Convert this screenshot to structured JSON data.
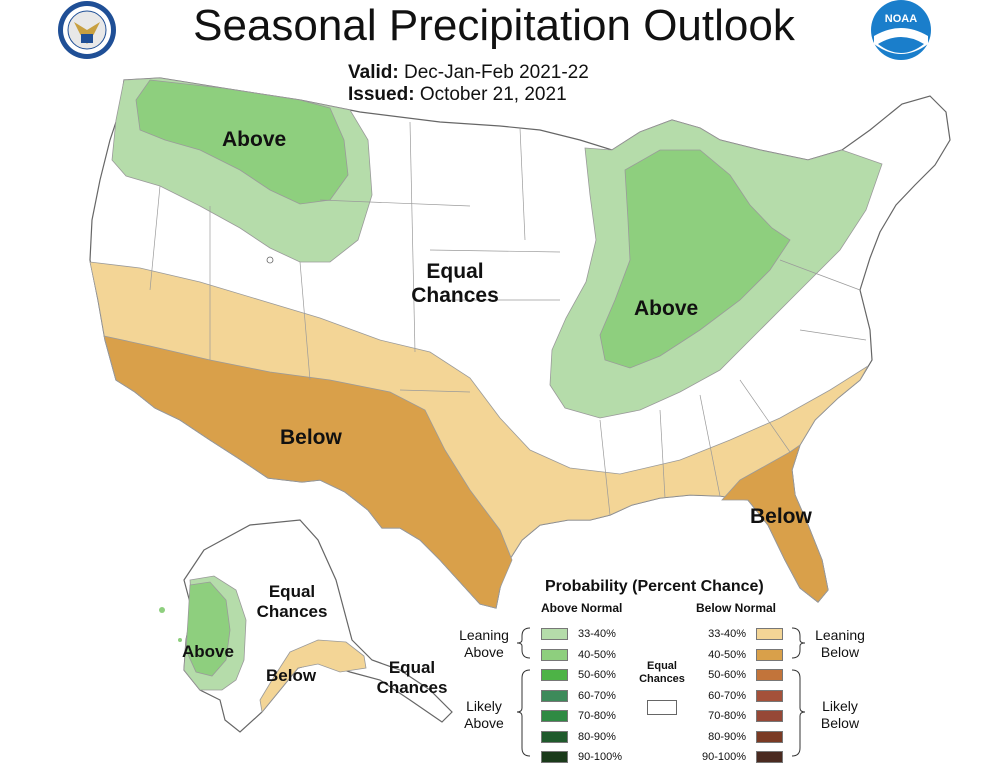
{
  "header": {
    "title": "Seasonal Precipitation Outlook",
    "valid_label": "Valid:",
    "valid_value": "Dec-Jan-Feb 2021-22",
    "issued_label": "Issued:",
    "issued_value": "October 21, 2021",
    "left_logo": "commerce-seal",
    "right_logo": "noaa-logo",
    "right_logo_text": "NOAA"
  },
  "map": {
    "labels": {
      "northwest": "Above",
      "center_line1": "Equal",
      "center_line2": "Chances",
      "ohio_valley": "Above",
      "southwest": "Below",
      "florida": "Below",
      "alaska_above": "Above",
      "alaska_equal_line1": "Equal",
      "alaska_equal_line2": "Chances",
      "alaska_below": "Below",
      "alaska_sw_line1": "Equal",
      "alaska_sw_line2": "Chances"
    }
  },
  "legend": {
    "title": "Probability (Percent Chance)",
    "above_header": "Above Normal",
    "below_header": "Below Normal",
    "leaning_above_1": "Leaning",
    "leaning_above_2": "Above",
    "likely_above_1": "Likely",
    "likely_above_2": "Above",
    "leaning_below_1": "Leaning",
    "leaning_below_2": "Below",
    "likely_below_1": "Likely",
    "likely_below_2": "Below",
    "equal_1": "Equal",
    "equal_2": "Chances",
    "above": [
      {
        "range": "33-40%",
        "color": "#b5dcaa"
      },
      {
        "range": "40-50%",
        "color": "#8ecf7e"
      },
      {
        "range": "50-60%",
        "color": "#4db346"
      },
      {
        "range": "60-70%",
        "color": "#3d8a5a"
      },
      {
        "range": "70-80%",
        "color": "#2f8a43"
      },
      {
        "range": "80-90%",
        "color": "#1f5a2c"
      },
      {
        "range": "90-100%",
        "color": "#1a3a1a"
      }
    ],
    "below": [
      {
        "range": "33-40%",
        "color": "#f3d596"
      },
      {
        "range": "40-50%",
        "color": "#d9a04a"
      },
      {
        "range": "50-60%",
        "color": "#c2743a"
      },
      {
        "range": "60-70%",
        "color": "#a4513a"
      },
      {
        "range": "70-80%",
        "color": "#964836"
      },
      {
        "range": "80-90%",
        "color": "#7a3a24"
      },
      {
        "range": "90-100%",
        "color": "#4a2a20"
      }
    ]
  },
  "colors": {
    "above_leaning": "#b5dcaa",
    "above_mid": "#8ecf7e",
    "below_leaning": "#f3d596",
    "below_mid": "#d9a04a",
    "boundary": "#9a9a9a"
  }
}
